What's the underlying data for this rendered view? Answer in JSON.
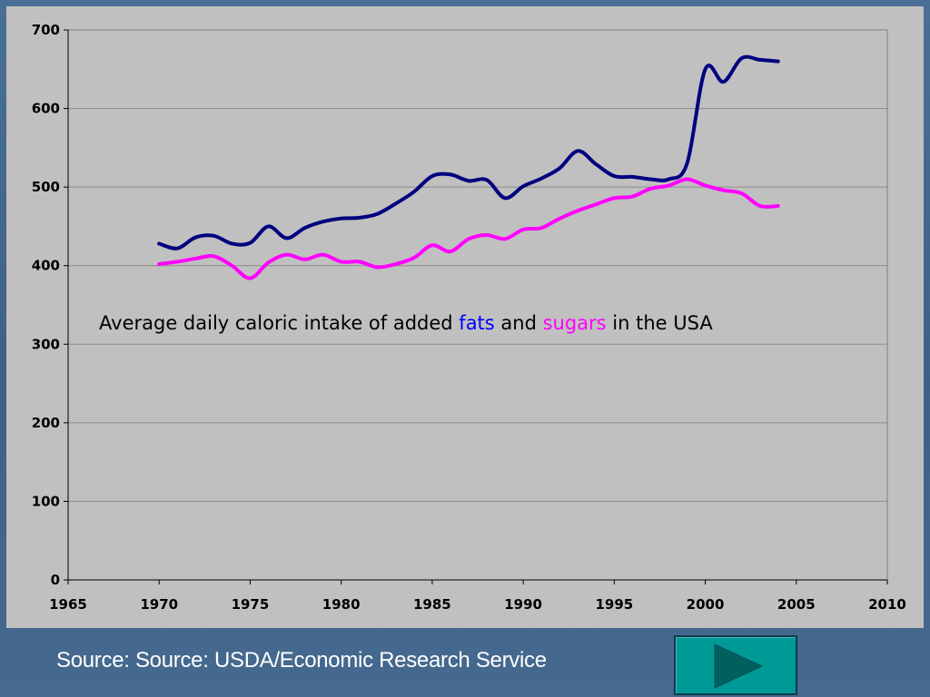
{
  "chart_data": {
    "type": "line",
    "x": [
      1970,
      1971,
      1972,
      1973,
      1974,
      1975,
      1976,
      1977,
      1978,
      1979,
      1980,
      1981,
      1982,
      1983,
      1984,
      1985,
      1986,
      1987,
      1988,
      1989,
      1990,
      1991,
      1992,
      1993,
      1994,
      1995,
      1996,
      1997,
      1998,
      1999,
      2000,
      2001,
      2002,
      2003,
      2004
    ],
    "series": [
      {
        "name": "fats",
        "color": "#000080",
        "values": [
          428,
          422,
          436,
          438,
          428,
          429,
          450,
          435,
          448,
          456,
          460,
          461,
          466,
          479,
          494,
          514,
          516,
          508,
          509,
          486,
          501,
          511,
          524,
          546,
          529,
          514,
          513,
          510,
          510,
          530,
          650,
          634,
          664,
          662,
          660
        ]
      },
      {
        "name": "sugars",
        "color": "#ff00ff",
        "values": [
          402,
          405,
          409,
          412,
          400,
          384,
          404,
          414,
          408,
          414,
          405,
          405,
          398,
          402,
          410,
          426,
          418,
          434,
          439,
          434,
          446,
          448,
          460,
          470,
          478,
          486,
          488,
          498,
          502,
          510,
          502,
          496,
          492,
          476,
          476
        ]
      }
    ],
    "xlim": [
      1965,
      2010
    ],
    "ylim": [
      0,
      700
    ],
    "xticks": [
      1965,
      1970,
      1975,
      1980,
      1985,
      1990,
      1995,
      2000,
      2005,
      2010
    ],
    "yticks": [
      0,
      100,
      200,
      300,
      400,
      500,
      600,
      700
    ],
    "grid": true,
    "background": "#c0c0c0"
  },
  "annotation": {
    "before": "Average daily caloric intake of added ",
    "fats": "fats",
    "and": " and ",
    "sugars": "sugars",
    "after": " in the USA",
    "fats_color": "#0000ff",
    "sugars_color": "#ff00ff"
  },
  "footer": {
    "source": "Source: Source: USDA/Economic Research Service",
    "next_icon": "play-triangle-icon"
  }
}
